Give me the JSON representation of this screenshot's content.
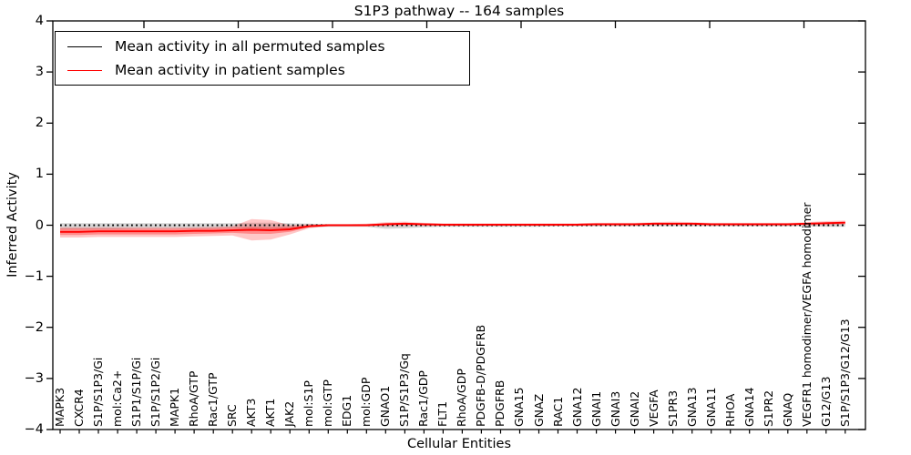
{
  "title": "S1P3 pathway -- 164 samples",
  "legend": {
    "items": [
      {
        "key": "permuted",
        "label": "Mean activity in all permuted samples",
        "color": "#000000"
      },
      {
        "key": "patient",
        "label": "Mean activity in patient samples",
        "color": "#ff0000"
      }
    ]
  },
  "axes": {
    "ylabel": "Inferred Activity",
    "xlabel": "Cellular Entities",
    "ytick_labels": [
      "4",
      "3",
      "2",
      "1",
      "0",
      "−1",
      "−2",
      "−3",
      "−4"
    ],
    "ytick_values": [
      4,
      3,
      2,
      1,
      0,
      -1,
      -2,
      -3,
      -4
    ]
  },
  "chart_data": {
    "type": "line",
    "title": "S1P3 pathway -- 164 samples",
    "xlabel": "Cellular Entities",
    "ylabel": "Inferred Activity",
    "ylim": [
      -4,
      4
    ],
    "grid": false,
    "legend_position": "upper left",
    "categories": [
      "MAPK3",
      "CXCR4",
      "S1P/S1P3/Gi",
      "mol:Ca2+",
      "S1P1/S1P/Gi",
      "S1P/S1P2/Gi",
      "MAPK1",
      "RhoA/GTP",
      "Rac1/GTP",
      "SRC",
      "AKT3",
      "AKT1",
      "JAK2",
      "mol:S1P",
      "mol:GTP",
      "EDG1",
      "mol:GDP",
      "GNAO1",
      "S1P/S1P3/Gq",
      "Rac1/GDP",
      "FLT1",
      "RhoA/GDP",
      "PDGFB-D/PDGFRB",
      "PDGFRB",
      "GNA15",
      "GNAZ",
      "RAC1",
      "GNA12",
      "GNAI1",
      "GNAI3",
      "GNAI2",
      "VEGFA",
      "S1PR3",
      "GNA13",
      "GNA11",
      "RHOA",
      "GNA14",
      "S1PR2",
      "GNAQ",
      "VEGFR1 homodimer/VEGFA homodimer",
      "G12/G13",
      "S1P/S1P3/G12/G13"
    ],
    "series": [
      {
        "name": "Mean activity in all permuted samples",
        "color": "#000000",
        "style": "dotted",
        "band_color": "rgba(0,0,0,0.16)",
        "values": [
          0,
          0,
          0,
          0,
          0,
          0,
          0,
          0,
          0,
          0,
          0,
          0,
          0,
          0,
          0,
          0,
          0,
          0,
          0,
          0,
          0,
          0,
          0,
          0,
          0,
          0,
          0,
          0,
          0,
          0,
          0,
          0,
          0,
          0,
          0,
          0,
          0,
          0,
          0,
          0,
          0,
          0
        ],
        "band_upper": [
          0.04,
          0.04,
          0.04,
          0.04,
          0.04,
          0.04,
          0.04,
          0.04,
          0.04,
          0.04,
          0.05,
          0.05,
          0.04,
          0.03,
          0.02,
          0.02,
          0.02,
          0.03,
          0.03,
          0.02,
          0.02,
          0.02,
          0.02,
          0.02,
          0.02,
          0.02,
          0.02,
          0.02,
          0.02,
          0.02,
          0.02,
          0.02,
          0.02,
          0.02,
          0.02,
          0.02,
          0.02,
          0.02,
          0.02,
          0.02,
          0.03,
          0.03
        ],
        "band_lower": [
          -0.08,
          -0.08,
          -0.08,
          -0.08,
          -0.07,
          -0.07,
          -0.07,
          -0.07,
          -0.07,
          -0.06,
          -0.08,
          -0.08,
          -0.06,
          -0.04,
          -0.03,
          -0.03,
          -0.03,
          -0.07,
          -0.06,
          -0.04,
          -0.03,
          -0.03,
          -0.03,
          -0.03,
          -0.03,
          -0.03,
          -0.02,
          -0.02,
          -0.02,
          -0.02,
          -0.02,
          -0.02,
          -0.02,
          -0.02,
          -0.02,
          -0.02,
          -0.02,
          -0.02,
          -0.02,
          -0.02,
          -0.03,
          -0.03
        ]
      },
      {
        "name": "Mean activity in patient samples",
        "color": "#ff0000",
        "style": "solid",
        "band_color": "rgba(255,0,0,0.22)",
        "band_inner_color": "rgba(255,0,0,0.30)",
        "values": [
          -0.13,
          -0.13,
          -0.12,
          -0.12,
          -0.12,
          -0.12,
          -0.12,
          -0.11,
          -0.11,
          -0.1,
          -0.09,
          -0.1,
          -0.08,
          -0.02,
          0.0,
          0.0,
          0.0,
          0.02,
          0.03,
          0.02,
          0.01,
          0.01,
          0.01,
          0.01,
          0.01,
          0.01,
          0.01,
          0.01,
          0.02,
          0.02,
          0.02,
          0.03,
          0.03,
          0.03,
          0.02,
          0.02,
          0.02,
          0.02,
          0.02,
          0.03,
          0.04,
          0.05
        ],
        "band_upper": [
          -0.04,
          -0.04,
          -0.04,
          -0.04,
          -0.04,
          -0.04,
          -0.04,
          -0.04,
          -0.03,
          -0.02,
          0.12,
          0.1,
          0.0,
          0.02,
          0.02,
          0.02,
          0.03,
          0.06,
          0.07,
          0.05,
          0.04,
          0.04,
          0.04,
          0.04,
          0.04,
          0.04,
          0.04,
          0.04,
          0.05,
          0.05,
          0.05,
          0.06,
          0.07,
          0.06,
          0.05,
          0.05,
          0.05,
          0.05,
          0.05,
          0.06,
          0.08,
          0.09
        ],
        "band_lower": [
          -0.24,
          -0.24,
          -0.23,
          -0.23,
          -0.23,
          -0.23,
          -0.23,
          -0.22,
          -0.21,
          -0.2,
          -0.3,
          -0.28,
          -0.18,
          -0.06,
          -0.02,
          -0.02,
          -0.02,
          -0.02,
          -0.01,
          -0.01,
          -0.01,
          -0.01,
          -0.01,
          -0.01,
          -0.01,
          -0.01,
          -0.01,
          -0.01,
          -0.01,
          -0.01,
          -0.01,
          0.0,
          0.0,
          0.0,
          -0.01,
          -0.01,
          -0.01,
          -0.01,
          -0.01,
          0.0,
          0.0,
          0.01
        ],
        "band_inner_upper": [
          -0.07,
          -0.07,
          -0.07,
          -0.07,
          -0.07,
          -0.07,
          -0.07,
          -0.06,
          -0.06,
          -0.05,
          -0.03,
          -0.04,
          -0.03,
          0.0,
          0.01,
          0.01,
          0.01,
          0.04,
          0.05,
          0.03,
          0.02,
          0.02,
          0.02,
          0.02,
          0.02,
          0.02,
          0.02,
          0.02,
          0.03,
          0.03,
          0.03,
          0.04,
          0.04,
          0.04,
          0.03,
          0.03,
          0.03,
          0.03,
          0.03,
          0.04,
          0.06,
          0.07
        ],
        "band_inner_lower": [
          -0.19,
          -0.19,
          -0.18,
          -0.18,
          -0.18,
          -0.18,
          -0.18,
          -0.17,
          -0.16,
          -0.15,
          -0.17,
          -0.17,
          -0.13,
          -0.04,
          -0.01,
          -0.01,
          -0.01,
          0.0,
          0.01,
          0.0,
          0.0,
          0.0,
          0.0,
          0.0,
          0.0,
          0.0,
          0.0,
          0.0,
          0.01,
          0.01,
          0.01,
          0.02,
          0.02,
          0.02,
          0.01,
          0.01,
          0.01,
          0.01,
          0.01,
          0.02,
          0.03,
          0.04
        ]
      }
    ]
  }
}
